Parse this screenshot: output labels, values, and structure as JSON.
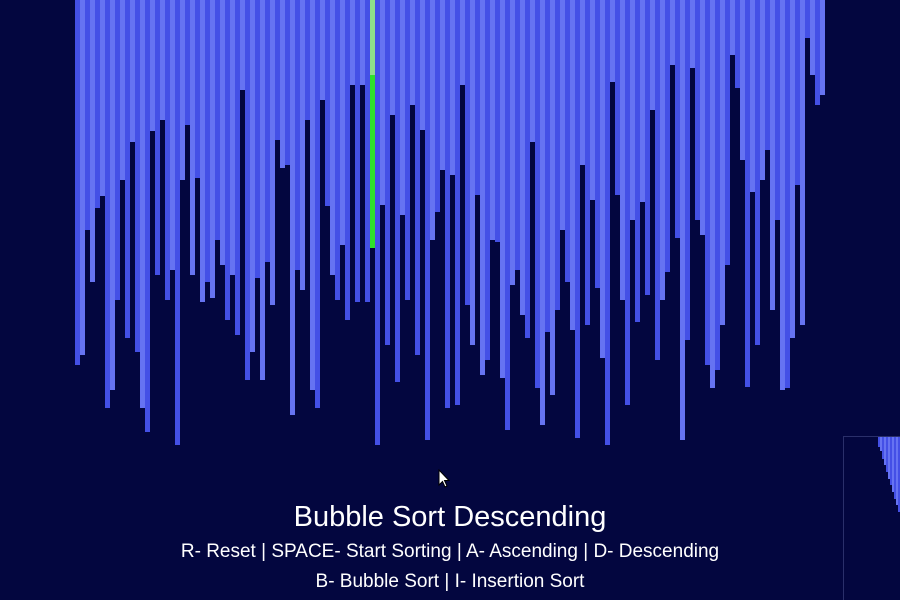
{
  "visualizer": {
    "algorithm_title": "Bubble Sort Descending",
    "controls_line_1": "R- Reset | SPACE- Start Sorting | A- Ascending | D- Descending",
    "controls_line_2": "B- Bubble Sort | I- Insertion Sort",
    "array_values": [
      365,
      355,
      230,
      282,
      208,
      196,
      408,
      390,
      300,
      180,
      338,
      142,
      352,
      408,
      432,
      131,
      275,
      120,
      300,
      270,
      445,
      180,
      125,
      275,
      178,
      302,
      282,
      298,
      240,
      265,
      320,
      275,
      335,
      90,
      380,
      352,
      278,
      380,
      262,
      305,
      140,
      168,
      165,
      415,
      270,
      290,
      120,
      390,
      408,
      100,
      206,
      275,
      300,
      245,
      320,
      85,
      302,
      85,
      302,
      248,
      445,
      205,
      345,
      115,
      382,
      215,
      300,
      105,
      355,
      130,
      440,
      240,
      212,
      170,
      408,
      175,
      405,
      85,
      305,
      345,
      195,
      375,
      360,
      240,
      242,
      378,
      430,
      285,
      270,
      315,
      338,
      142,
      388,
      425,
      332,
      395,
      310,
      230,
      282,
      330,
      438,
      165,
      325,
      200,
      288,
      358,
      445,
      82,
      195,
      300,
      405,
      220,
      322,
      202,
      295,
      110,
      360,
      300,
      272,
      65,
      238,
      440,
      340,
      68,
      220,
      235,
      365,
      388,
      370,
      325,
      265,
      55,
      88,
      160,
      387,
      192,
      345,
      180,
      150,
      310,
      220,
      390,
      388,
      338,
      185,
      325,
      38,
      75,
      105,
      95
    ],
    "highlighted_index": 59,
    "colors": {
      "background": "#03063f",
      "bar_light": "#6673f2",
      "bar_dark": "#4450e6",
      "highlight": "#2fe02b",
      "text": "#ffffff"
    }
  },
  "minimap": {
    "bar_values": [
      10,
      14,
      22,
      28,
      35,
      42,
      48,
      55,
      62,
      68,
      75
    ]
  }
}
